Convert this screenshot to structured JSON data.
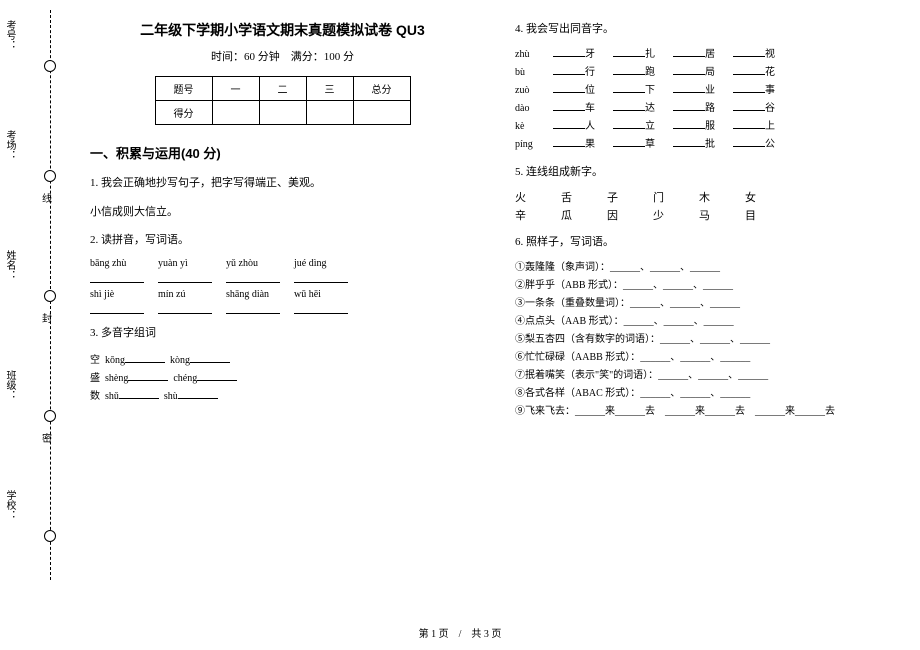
{
  "margin": {
    "labels": [
      "考号：",
      "考场：",
      "姓名：",
      "班级：",
      "学校："
    ],
    "marks": [
      "线",
      "封",
      "密"
    ]
  },
  "header": {
    "title": "二年级下学期小学语文期末真题模拟试卷 QU3",
    "subtitle": "时间：60 分钟　满分：100 分"
  },
  "score_table": {
    "row1": [
      "题号",
      "一",
      "二",
      "三",
      "总分"
    ],
    "row2": [
      "得分",
      "",
      "",
      "",
      ""
    ]
  },
  "section1": {
    "heading": "一、积累与运用(40 分)",
    "q1": {
      "prompt": "1. 我会正确地抄写句子，把字写得端正、美观。",
      "sentence": "小信成则大信立。"
    },
    "q2": {
      "prompt": "2. 读拼音，写词语。",
      "row1": [
        "bāng zhù",
        "yuàn yì",
        "yǔ zhòu",
        "jué dìng"
      ],
      "row2": [
        "shì jiè",
        "mín zú",
        "shāng diàn",
        "wū hēi"
      ]
    },
    "q3": {
      "prompt": "3. 多音字组词",
      "items": [
        {
          "char": "空",
          "p1": "kōng",
          "p2": "kòng"
        },
        {
          "char": "盛",
          "p1": "shèng",
          "p2": "chéng"
        },
        {
          "char": "数",
          "p1": "shǔ",
          "p2": "shù"
        }
      ]
    },
    "q4": {
      "prompt": "4. 我会写出同音字。",
      "groups": [
        {
          "py": "zhù",
          "cells": [
            "牙",
            "扎",
            "居",
            "视"
          ]
        },
        {
          "py": "bù",
          "cells": [
            "行",
            "跑",
            "局",
            "花"
          ]
        },
        {
          "py": "zuò",
          "cells": [
            "位",
            "下",
            "业",
            "事"
          ]
        },
        {
          "py": "dào",
          "cells": [
            "车",
            "达",
            "路",
            "谷"
          ]
        },
        {
          "py": "kè",
          "cells": [
            "人",
            "立",
            "服",
            "上"
          ]
        },
        {
          "py": "píng",
          "cells": [
            "果",
            "草",
            "批",
            "公"
          ]
        }
      ]
    },
    "q5": {
      "prompt": "5. 连线组成新字。",
      "row1": "火　舌　子　门　木　女",
      "row2": "辛　瓜　因　少　马　目"
    },
    "q6": {
      "prompt": "6. 照样子，写词语。",
      "items": [
        "①轰隆隆（象声词）：______、______、______",
        "②胖乎乎（ABB 形式）：______、______、______",
        "③一条条（重叠数量词）：______、______、______",
        "④点点头（AAB 形式）：______、______、______",
        "⑤梨五杏四（含有数字的词语）：______、______、______",
        "⑥忙忙碌碌（AABB 形式）：______、______、______",
        "⑦抿着嘴笑（表示\"笑\"的词语）：______、______、______",
        "⑧各式各样（ABAC 形式）：______、______、______",
        "⑨飞来飞去：______来______去　______来______去　______来______去"
      ]
    }
  },
  "footer": "第 1 页　/　共 3 页"
}
